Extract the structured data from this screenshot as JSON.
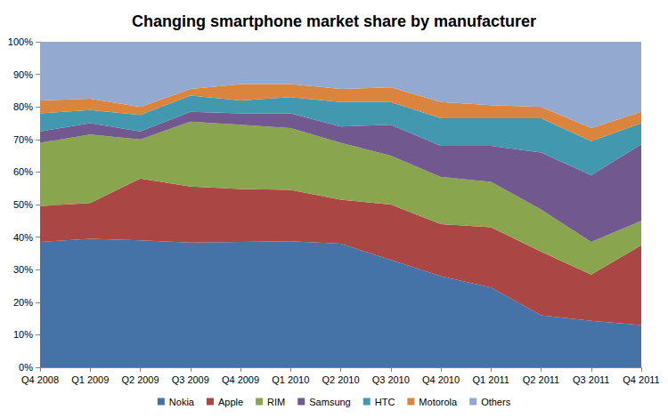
{
  "chart_data": {
    "type": "area",
    "title": "Changing smartphone market share by manufacturer",
    "stacked": true,
    "grid": true,
    "legend": "bottom",
    "categories": [
      "Q4 2008",
      "Q1 2009",
      "Q2 2009",
      "Q3 2009",
      "Q4 2009",
      "Q1 2010",
      "Q2 2010",
      "Q3 2010",
      "Q4 2010",
      "Q1 2011",
      "Q2 2011",
      "Q3 2011",
      "Q4 2011"
    ],
    "ylim": [
      0,
      100
    ],
    "yticks": [
      {
        "value": 0,
        "label": "0%"
      },
      {
        "value": 10,
        "label": "10%"
      },
      {
        "value": 20,
        "label": "20%"
      },
      {
        "value": 30,
        "label": "30%"
      },
      {
        "value": 40,
        "label": "40%"
      },
      {
        "value": 50,
        "label": "50%"
      },
      {
        "value": 60,
        "label": "60%"
      },
      {
        "value": 70,
        "label": "70%"
      },
      {
        "value": 80,
        "label": "80%"
      },
      {
        "value": 90,
        "label": "90%"
      },
      {
        "value": 100,
        "label": "100%"
      }
    ],
    "series": [
      {
        "name": "Nokia",
        "color": "#4572A7",
        "values": [
          38.5,
          39.5,
          39,
          38.3,
          38.5,
          38.7,
          38,
          33,
          28,
          24.5,
          16,
          14.3,
          13
        ]
      },
      {
        "name": "Apple",
        "color": "#AA4643",
        "values": [
          11,
          11,
          19,
          17.2,
          16.3,
          15.8,
          13.5,
          17,
          16,
          18.5,
          19.5,
          14.2,
          24.5
        ]
      },
      {
        "name": "RIM",
        "color": "#89A54E",
        "values": [
          19.5,
          21,
          12,
          20,
          19.7,
          19,
          17.5,
          15,
          14.5,
          14,
          13,
          10,
          7.5
        ]
      },
      {
        "name": "Samsung",
        "color": "#71588F",
        "values": [
          3.5,
          3.5,
          2.5,
          3,
          3.5,
          4.5,
          5,
          9.5,
          9.5,
          11,
          17.5,
          20.5,
          23.5
        ]
      },
      {
        "name": "HTC",
        "color": "#4198AF",
        "values": [
          5.5,
          4,
          5,
          5,
          4,
          5,
          7.5,
          7,
          8.5,
          8.5,
          10.5,
          10.5,
          6.5
        ]
      },
      {
        "name": "Motorola",
        "color": "#DB843D",
        "values": [
          4,
          3.5,
          2.5,
          2,
          5,
          4,
          4,
          4.5,
          5,
          4,
          3.5,
          4,
          3.5
        ]
      },
      {
        "name": "Others",
        "color": "#93A9CF",
        "values": [
          18,
          17.5,
          20,
          14.5,
          13,
          13,
          14.5,
          14,
          18.5,
          19.5,
          20,
          26.5,
          21.5
        ]
      }
    ]
  }
}
